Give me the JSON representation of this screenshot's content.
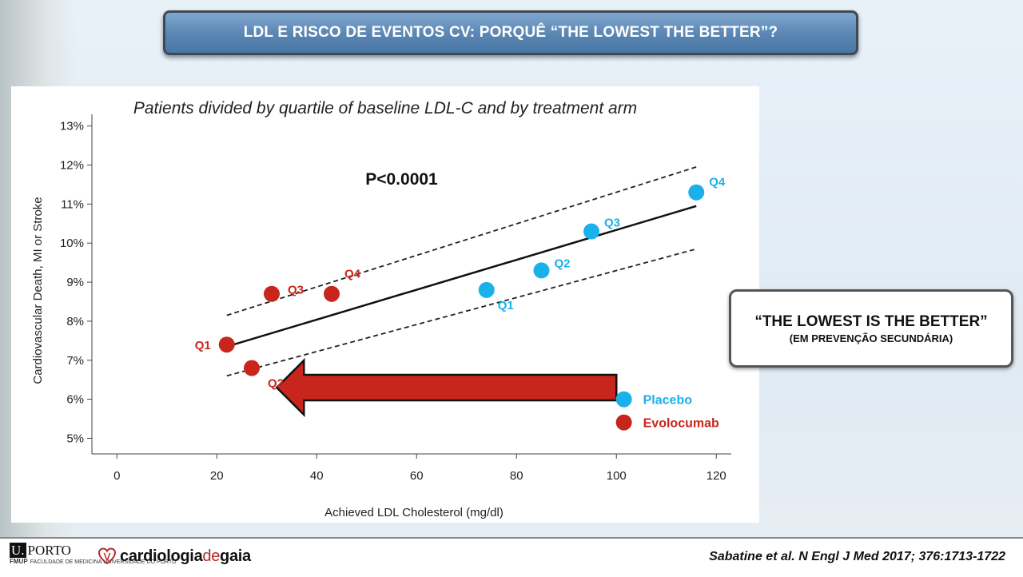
{
  "slide_title": "LDL E RISCO DE EVENTOS CV: PORQUÊ “THE LOWEST THE BETTER”?",
  "callout": {
    "main": "“THE LOWEST IS THE BETTER”",
    "sub": "(EM PREVENÇÃO SECUNDÁRIA)"
  },
  "footer": {
    "uporto": "PORTO",
    "uporto_letter": "U.",
    "fmup": "FMUP",
    "faculty": "FACULDADE DE MEDICINA UNIVERSIDADE DO PORTO",
    "brand_a": "cardiologia",
    "brand_b": "de",
    "brand_c": "gaia",
    "citation": "Sabatine et al. N Engl J Med 2017; 376:1713-1722"
  },
  "colors": {
    "placebo": "#1ab0ea",
    "evolocumab": "#c8261c",
    "arrow": "#c8261c"
  },
  "chart_data": {
    "type": "scatter",
    "title": "Patients divided by quartile of baseline LDL-C and by treatment arm",
    "xlabel": "Achieved LDL Cholesterol (mg/dl)",
    "ylabel": "Cardiovascular Death, MI or Stroke",
    "annotation": "P<0.0001",
    "xlim": [
      -5,
      123
    ],
    "ylim": [
      4.6,
      13.3
    ],
    "xticks": [
      0,
      20,
      40,
      60,
      80,
      100,
      120
    ],
    "yticks": [
      5,
      6,
      7,
      8,
      9,
      10,
      11,
      12,
      13
    ],
    "ytick_suffix": "%",
    "legend_position": "bottom-right",
    "series": [
      {
        "name": "Placebo",
        "color": "#1ab0ea",
        "points": [
          {
            "label": "Q1",
            "x": 74,
            "y": 8.8
          },
          {
            "label": "Q2",
            "x": 85,
            "y": 9.3
          },
          {
            "label": "Q3",
            "x": 95,
            "y": 10.3
          },
          {
            "label": "Q4",
            "x": 116,
            "y": 11.3
          }
        ]
      },
      {
        "name": "Evolocumab",
        "color": "#c8261c",
        "points": [
          {
            "label": "Q1",
            "x": 22,
            "y": 7.4
          },
          {
            "label": "Q2",
            "x": 27,
            "y": 6.8
          },
          {
            "label": "Q3",
            "x": 31,
            "y": 8.7
          },
          {
            "label": "Q4",
            "x": 43,
            "y": 8.7
          }
        ]
      }
    ],
    "fit_line": {
      "x": [
        22,
        116
      ],
      "y": [
        7.35,
        10.95
      ]
    },
    "ci_upper": {
      "x": [
        22,
        116
      ],
      "y": [
        8.15,
        11.95
      ]
    },
    "ci_lower": {
      "x": [
        22,
        116
      ],
      "y": [
        6.6,
        9.85
      ]
    },
    "arrow": {
      "from_x": 100,
      "to_x": 32,
      "y": 6.3
    }
  }
}
